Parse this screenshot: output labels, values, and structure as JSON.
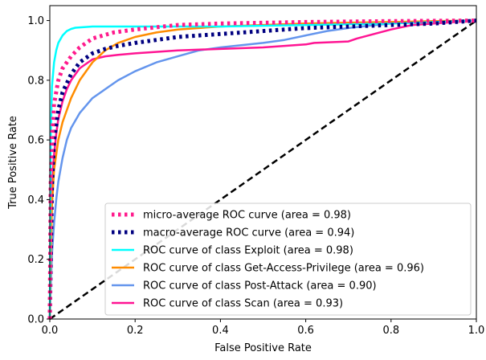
{
  "chart_data": {
    "type": "line",
    "xlabel": "False Positive Rate",
    "ylabel": "True Positive Rate",
    "xlim": [
      0.0,
      1.0
    ],
    "ylim": [
      0.0,
      1.05
    ],
    "xticks": [
      "0.0",
      "0.2",
      "0.4",
      "0.6",
      "0.8",
      "1.0"
    ],
    "yticks": [
      "0.0",
      "0.2",
      "0.4",
      "0.6",
      "0.8",
      "1.0"
    ],
    "grid": false,
    "legend_position": "lower-right",
    "series": [
      {
        "name": "micro-average ROC curve (area = 0.98)",
        "color": "#ff1a8c",
        "style": "dotted",
        "x": [
          0,
          0.002,
          0.005,
          0.01,
          0.02,
          0.03,
          0.05,
          0.07,
          0.1,
          0.15,
          0.2,
          0.3,
          0.4,
          0.6,
          0.8,
          1.0
        ],
        "y": [
          0,
          0.45,
          0.6,
          0.72,
          0.8,
          0.84,
          0.88,
          0.91,
          0.94,
          0.96,
          0.97,
          0.985,
          0.99,
          0.995,
          0.998,
          1.0
        ]
      },
      {
        "name": "macro-average ROC curve (area = 0.94)",
        "color": "#000080",
        "style": "dotted",
        "x": [
          0,
          0.005,
          0.01,
          0.02,
          0.03,
          0.05,
          0.07,
          0.1,
          0.13,
          0.16,
          0.2,
          0.25,
          0.3,
          0.35,
          0.4,
          0.5,
          0.6,
          0.7,
          0.8,
          0.9,
          0.95,
          1.0
        ],
        "y": [
          0,
          0.45,
          0.6,
          0.7,
          0.76,
          0.82,
          0.86,
          0.89,
          0.905,
          0.915,
          0.925,
          0.935,
          0.945,
          0.95,
          0.955,
          0.965,
          0.975,
          0.98,
          0.985,
          0.99,
          0.995,
          1.0
        ]
      },
      {
        "name": "ROC curve of class Exploit (area = 0.98)",
        "color": "#00ffff",
        "style": "solid",
        "x": [
          0,
          0.002,
          0.005,
          0.01,
          0.015,
          0.02,
          0.03,
          0.04,
          0.05,
          0.06,
          0.08,
          0.1,
          0.15,
          0.2,
          0.4,
          0.6,
          0.8,
          1.0
        ],
        "y": [
          0,
          0.6,
          0.78,
          0.86,
          0.9,
          0.925,
          0.95,
          0.965,
          0.972,
          0.976,
          0.978,
          0.98,
          0.98,
          0.98,
          0.98,
          0.985,
          0.99,
          1.0
        ]
      },
      {
        "name": "ROC curve of class Get-Access-Privilege (area = 0.96)",
        "color": "#ff8c00",
        "style": "solid",
        "x": [
          0,
          0.002,
          0.005,
          0.01,
          0.02,
          0.03,
          0.05,
          0.07,
          0.1,
          0.13,
          0.16,
          0.2,
          0.25,
          0.3,
          0.4,
          0.5,
          0.6,
          0.7,
          0.8,
          0.9,
          1.0
        ],
        "y": [
          0,
          0.2,
          0.38,
          0.5,
          0.6,
          0.66,
          0.74,
          0.8,
          0.86,
          0.9,
          0.925,
          0.945,
          0.96,
          0.97,
          0.98,
          0.985,
          0.99,
          0.993,
          0.995,
          0.998,
          1.0
        ]
      },
      {
        "name": "ROC curve of class Post-Attack (area = 0.90)",
        "color": "#6495ed",
        "style": "solid",
        "x": [
          0,
          0.002,
          0.005,
          0.01,
          0.015,
          0.02,
          0.03,
          0.04,
          0.05,
          0.07,
          0.1,
          0.13,
          0.16,
          0.2,
          0.25,
          0.3,
          0.35,
          0.4,
          0.5,
          0.55,
          0.6,
          0.65,
          0.7,
          0.75,
          0.8,
          0.85,
          0.9,
          0.95,
          1.0
        ],
        "y": [
          0,
          0.1,
          0.22,
          0.32,
          0.4,
          0.46,
          0.54,
          0.6,
          0.64,
          0.69,
          0.74,
          0.77,
          0.8,
          0.83,
          0.86,
          0.88,
          0.9,
          0.91,
          0.925,
          0.935,
          0.95,
          0.965,
          0.975,
          0.983,
          0.99,
          0.995,
          0.997,
          0.998,
          1.0
        ]
      },
      {
        "name": "ROC curve of class Scan (area = 0.93)",
        "color": "#ff1493",
        "style": "solid",
        "x": [
          0,
          0.002,
          0.005,
          0.01,
          0.015,
          0.02,
          0.03,
          0.04,
          0.05,
          0.07,
          0.1,
          0.13,
          0.16,
          0.2,
          0.3,
          0.4,
          0.5,
          0.55,
          0.6,
          0.62,
          0.7,
          0.72,
          0.8,
          0.85,
          0.9,
          0.95,
          1.0
        ],
        "y": [
          0,
          0.3,
          0.45,
          0.55,
          0.62,
          0.67,
          0.73,
          0.77,
          0.8,
          0.84,
          0.87,
          0.88,
          0.885,
          0.89,
          0.9,
          0.905,
          0.91,
          0.915,
          0.92,
          0.925,
          0.93,
          0.94,
          0.97,
          0.985,
          0.99,
          0.995,
          1.0
        ]
      },
      {
        "name": "",
        "color": "#000000",
        "style": "dashed",
        "x": [
          0,
          1.0
        ],
        "y": [
          0,
          1.0
        ]
      }
    ]
  }
}
